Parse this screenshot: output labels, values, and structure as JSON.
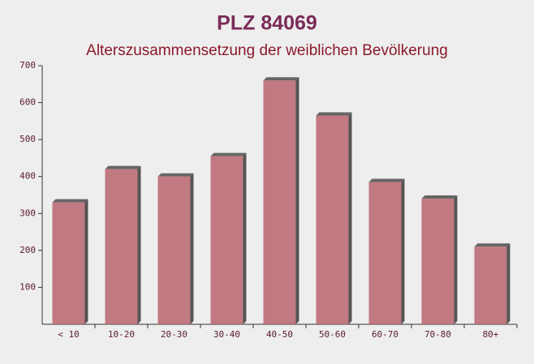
{
  "chart_data": {
    "type": "bar",
    "title": "PLZ 84069",
    "subtitle": "Alterszusammensetzung der weiblichen Bevölkerung",
    "categories": [
      "< 10",
      "10-20",
      "20-30",
      "30-40",
      "40-50",
      "50-60",
      "60-70",
      "70-80",
      "80+"
    ],
    "values": [
      330,
      420,
      400,
      455,
      660,
      565,
      385,
      340,
      210
    ],
    "color": "#b8646f",
    "ylim": [
      0,
      700
    ],
    "yticks": [
      100,
      200,
      300,
      400,
      500,
      600,
      700
    ],
    "grid": false
  }
}
